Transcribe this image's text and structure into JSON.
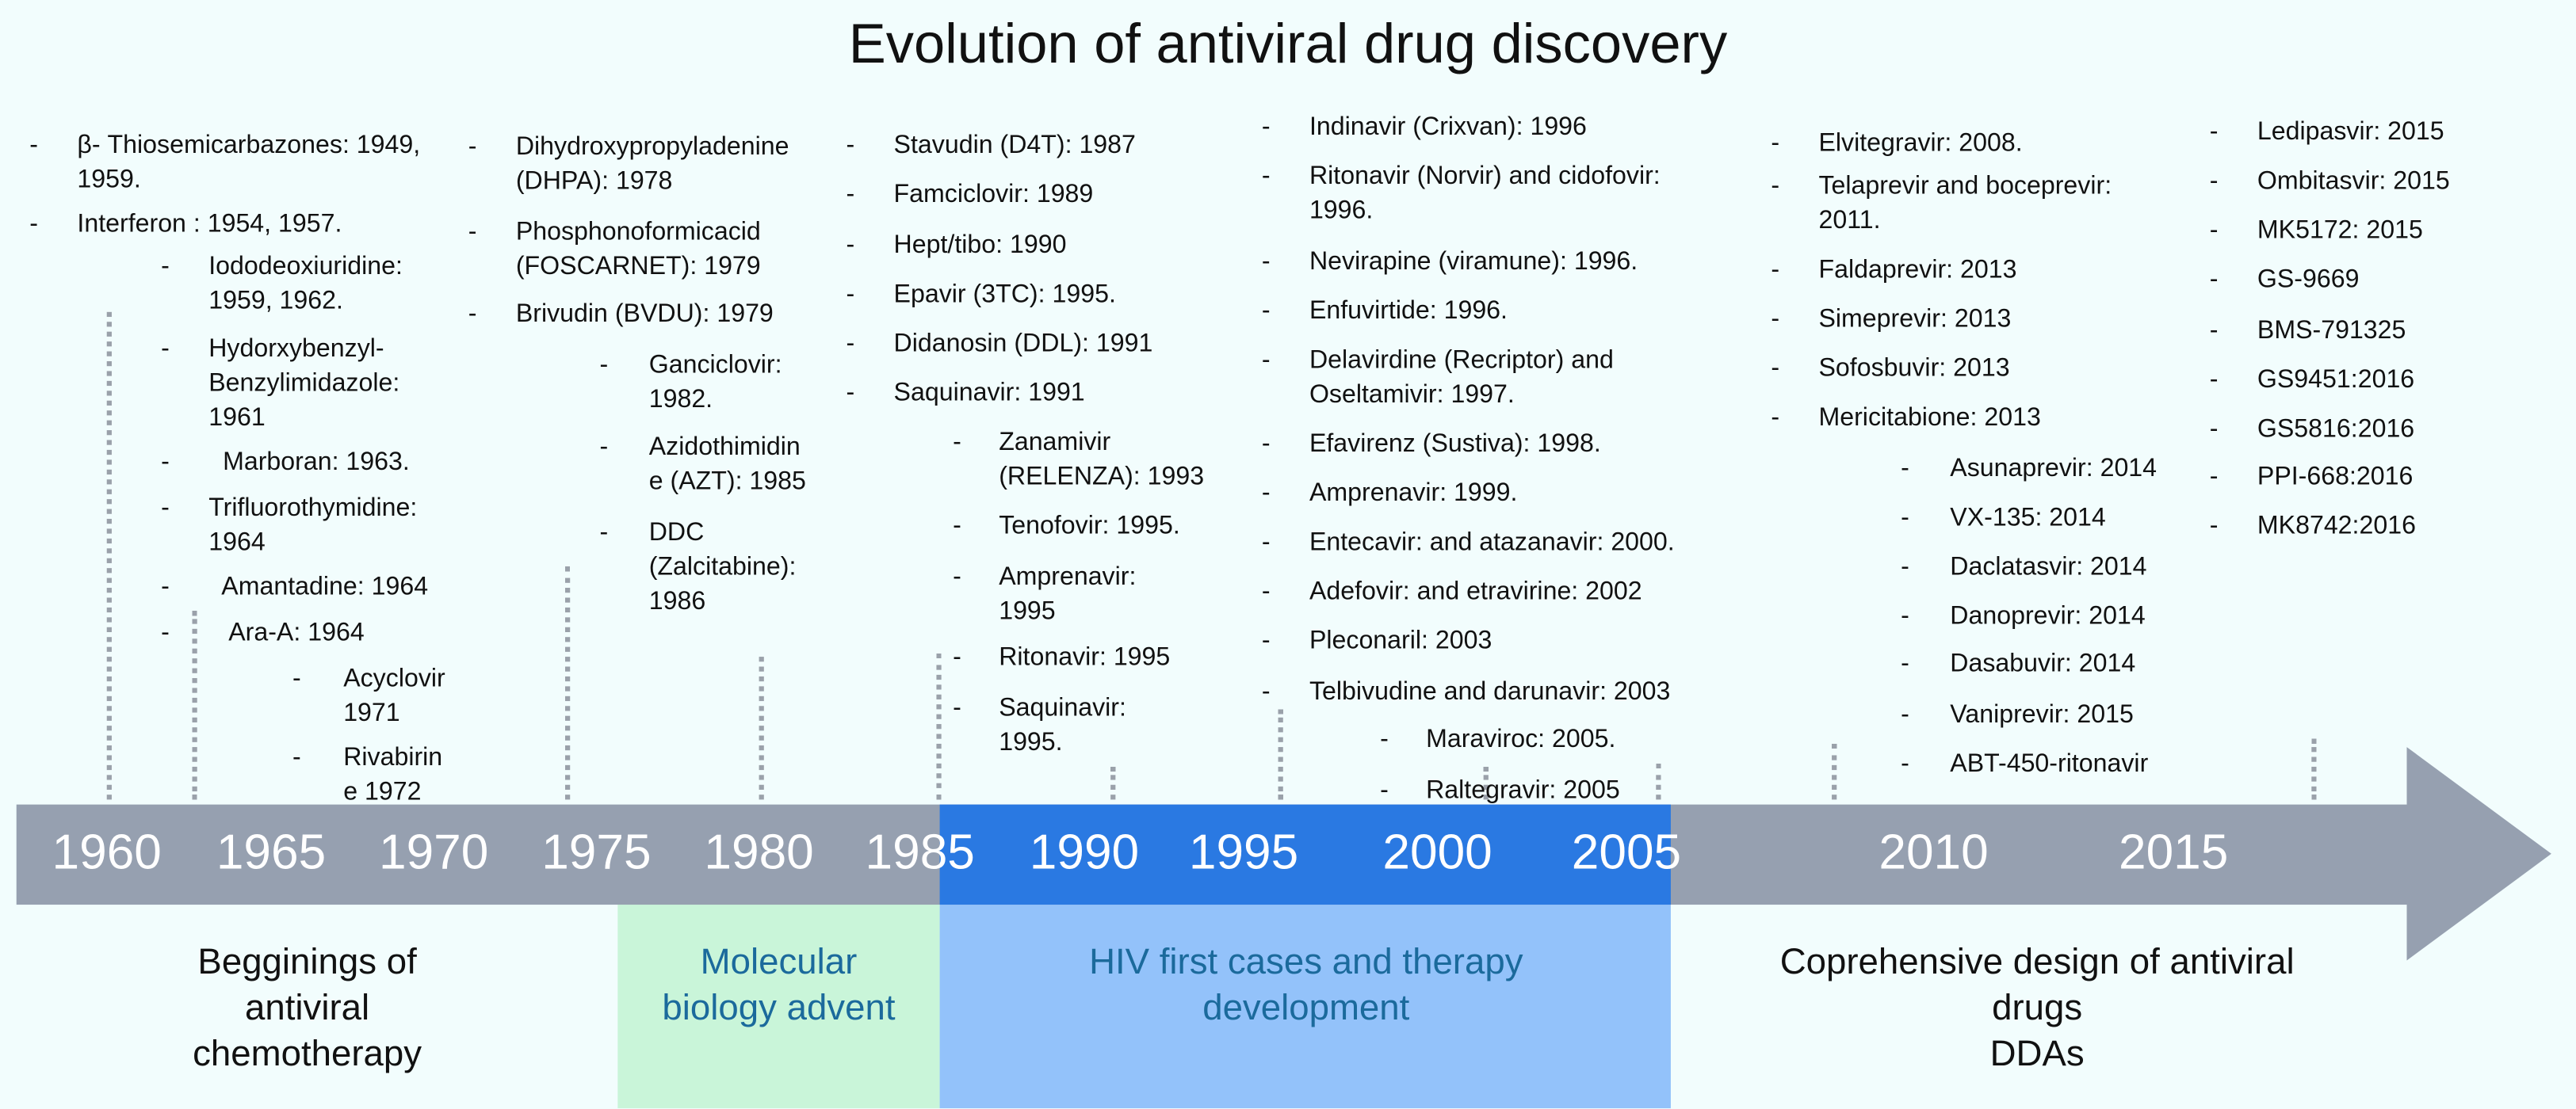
{
  "title": "Evolution of antiviral drug discovery",
  "colors": {
    "bar": "#96a0b0",
    "hiv_bar": "#2a79e2",
    "hiv_band": "#93c2fa",
    "molecular_band": "#c9f5d9",
    "era_text_colored": "#1b6a9c"
  },
  "years": [
    "1960",
    "1965",
    "1970",
    "1975",
    "1980",
    "1985",
    "1990",
    "1995",
    "2000",
    "2005",
    "2010",
    "2015"
  ],
  "eras": [
    {
      "label": "Begginings of\nantiviral\nchemotherapy"
    },
    {
      "label": "Molecular\nbiology advent"
    },
    {
      "label": "HIV first cases and therapy\ndevelopment"
    },
    {
      "label": "Coprehensive design of antiviral\ndrugs\nDDAs"
    }
  ],
  "bullet": "-",
  "lists": [
    {
      "items": [
        "β- Thiosemicarbazones: 1949,\n1959.",
        "Interferon : 1954, 1957."
      ]
    },
    {
      "items": [
        "Iododeoxiuridine:\n1959, 1962.",
        "Hydorxybenzyl-\nBenzylimidazole:\n1961",
        "  Marboran: 1963.",
        "Trifluorothymidine:\n1964",
        "  Amantadine: 1964",
        "   Ara-A: 1964"
      ]
    },
    {
      "items": [
        "Acyclovir\n1971",
        "Rivabirin\ne 1972"
      ]
    },
    {
      "items": [
        "Dihydroxypropyladenine\n(DHPA): 1978",
        "Phosphonoformicacid\n(FOSCARNET): 1979",
        "Brivudin (BVDU): 1979"
      ]
    },
    {
      "items": [
        "Ganciclovir:\n1982.",
        "Azidothimidin\ne (AZT): 1985",
        "DDC\n(Zalcitabine):\n1986"
      ]
    },
    {
      "items": [
        "Stavudin (D4T): 1987",
        "Famciclovir: 1989",
        "Hept/tibo: 1990",
        "Epavir (3TC): 1995.",
        "Didanosin (DDL): 1991",
        "Saquinavir: 1991"
      ]
    },
    {
      "items": [
        "Zanamivir\n(RELENZA): 1993",
        "Tenofovir: 1995.",
        "Amprenavir:\n1995",
        "Ritonavir: 1995",
        "Saquinavir:\n1995."
      ]
    },
    {
      "items": [
        "Indinavir (Crixvan): 1996",
        "Ritonavir (Norvir) and cidofovir:\n1996.",
        "Nevirapine (viramune): 1996.",
        "Enfuvirtide: 1996.",
        "Delavirdine (Recriptor) and\nOseltamivir: 1997.",
        "Efavirenz (Sustiva): 1998.",
        "Amprenavir: 1999.",
        "Entecavir: and atazanavir: 2000.",
        "Adefovir: and etravirine: 2002",
        "Pleconaril: 2003",
        "Telbivudine and darunavir: 2003"
      ]
    },
    {
      "items": [
        "Maraviroc: 2005.",
        "Raltegravir: 2005"
      ]
    },
    {
      "items": [
        "Elvitegravir: 2008.",
        "Telaprevir and boceprevir:\n2011.",
        "Faldaprevir: 2013",
        "Simeprevir: 2013",
        "Sofosbuvir: 2013",
        "Mericitabione: 2013"
      ]
    },
    {
      "items": [
        "Asunaprevir: 2014",
        "VX-135: 2014",
        "Daclatasvir: 2014",
        "Danoprevir: 2014",
        "Dasabuvir: 2014",
        "Vaniprevir: 2015",
        "ABT-450-ritonavir"
      ]
    },
    {
      "items": [
        "Ledipasvir: 2015",
        "Ombitasvir: 2015",
        "MK5172: 2015",
        "GS-9669",
        "BMS-791325",
        "GS9451:2016",
        "GS5816:2016",
        "PPI-668:2016",
        "MK8742:2016"
      ]
    }
  ]
}
